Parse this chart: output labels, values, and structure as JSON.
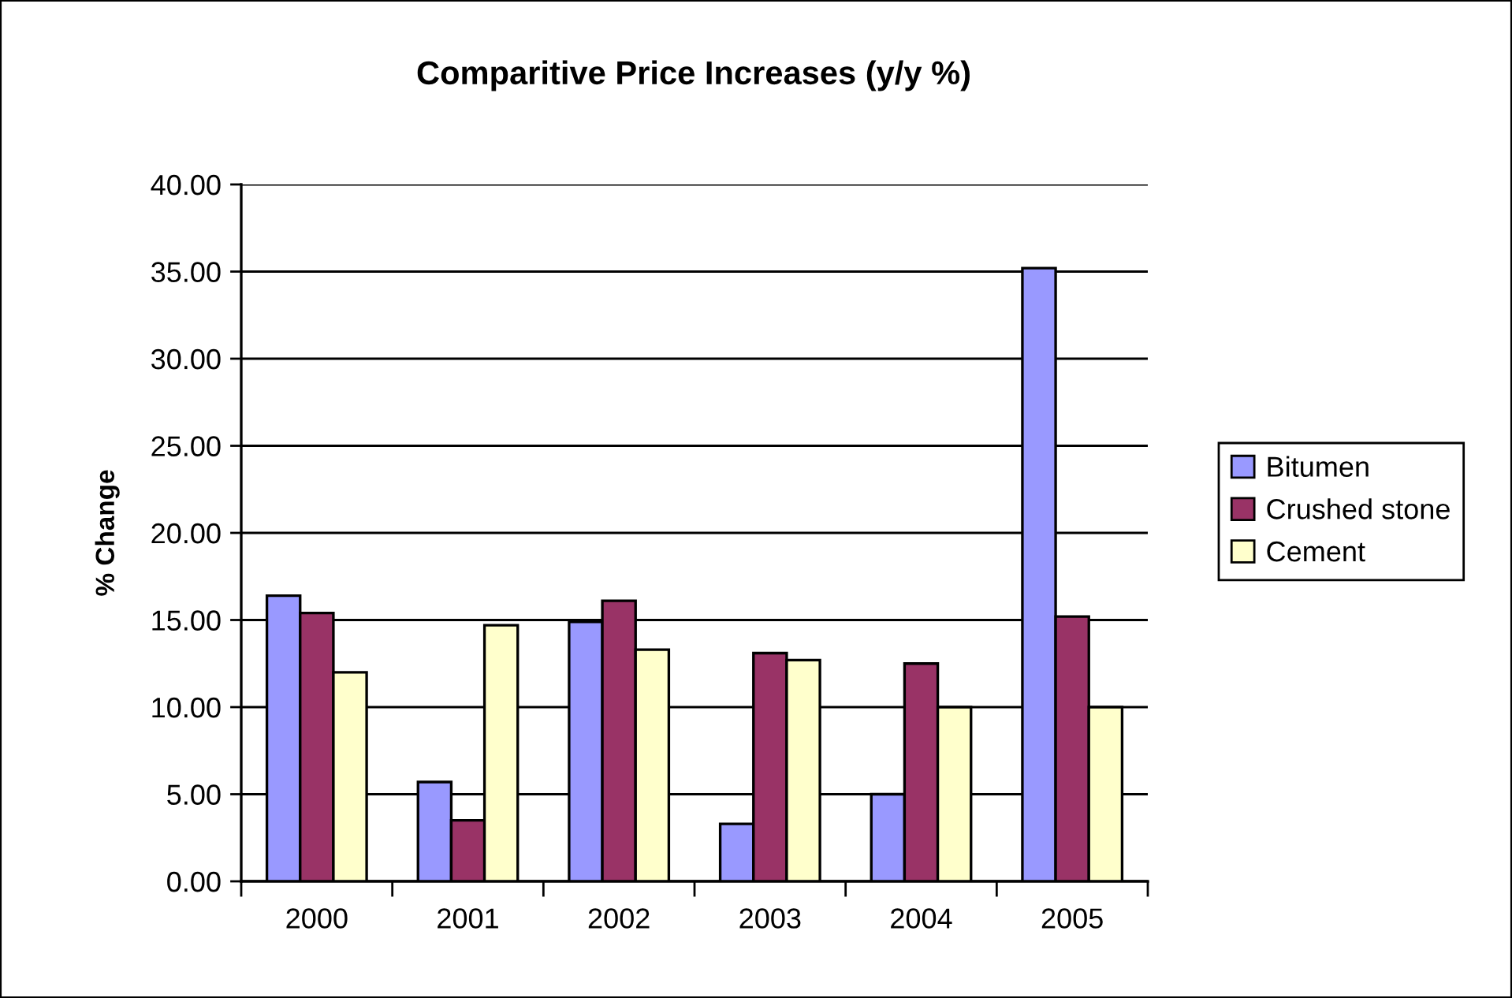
{
  "chart_data": {
    "type": "bar",
    "title": "Comparitive Price Increases (y/y %)",
    "ylabel": "% Change",
    "categories": [
      "2000",
      "2001",
      "2002",
      "2003",
      "2004",
      "2005"
    ],
    "series": [
      {
        "name": "Bitumen",
        "color": "#9999ff",
        "values": [
          16.4,
          5.7,
          14.9,
          3.3,
          5.0,
          35.2
        ]
      },
      {
        "name": "Crushed stone",
        "color": "#993366",
        "values": [
          15.4,
          3.5,
          16.1,
          13.1,
          12.5,
          15.2
        ]
      },
      {
        "name": "Cement",
        "color": "#ffffcc",
        "values": [
          12.0,
          14.7,
          13.3,
          12.7,
          10.0,
          10.0
        ]
      }
    ],
    "ylim": [
      0,
      40
    ],
    "yticks": [
      {
        "value": 0,
        "label": "0.00"
      },
      {
        "value": 5,
        "label": "5.00"
      },
      {
        "value": 10,
        "label": "10.00"
      },
      {
        "value": 15,
        "label": "15.00"
      },
      {
        "value": 20,
        "label": "20.00"
      },
      {
        "value": 25,
        "label": "25.00"
      },
      {
        "value": 30,
        "label": "30.00"
      },
      {
        "value": 35,
        "label": "35.00"
      },
      {
        "value": 40,
        "label": "40.00"
      }
    ],
    "grid": "y",
    "legend": "right"
  }
}
